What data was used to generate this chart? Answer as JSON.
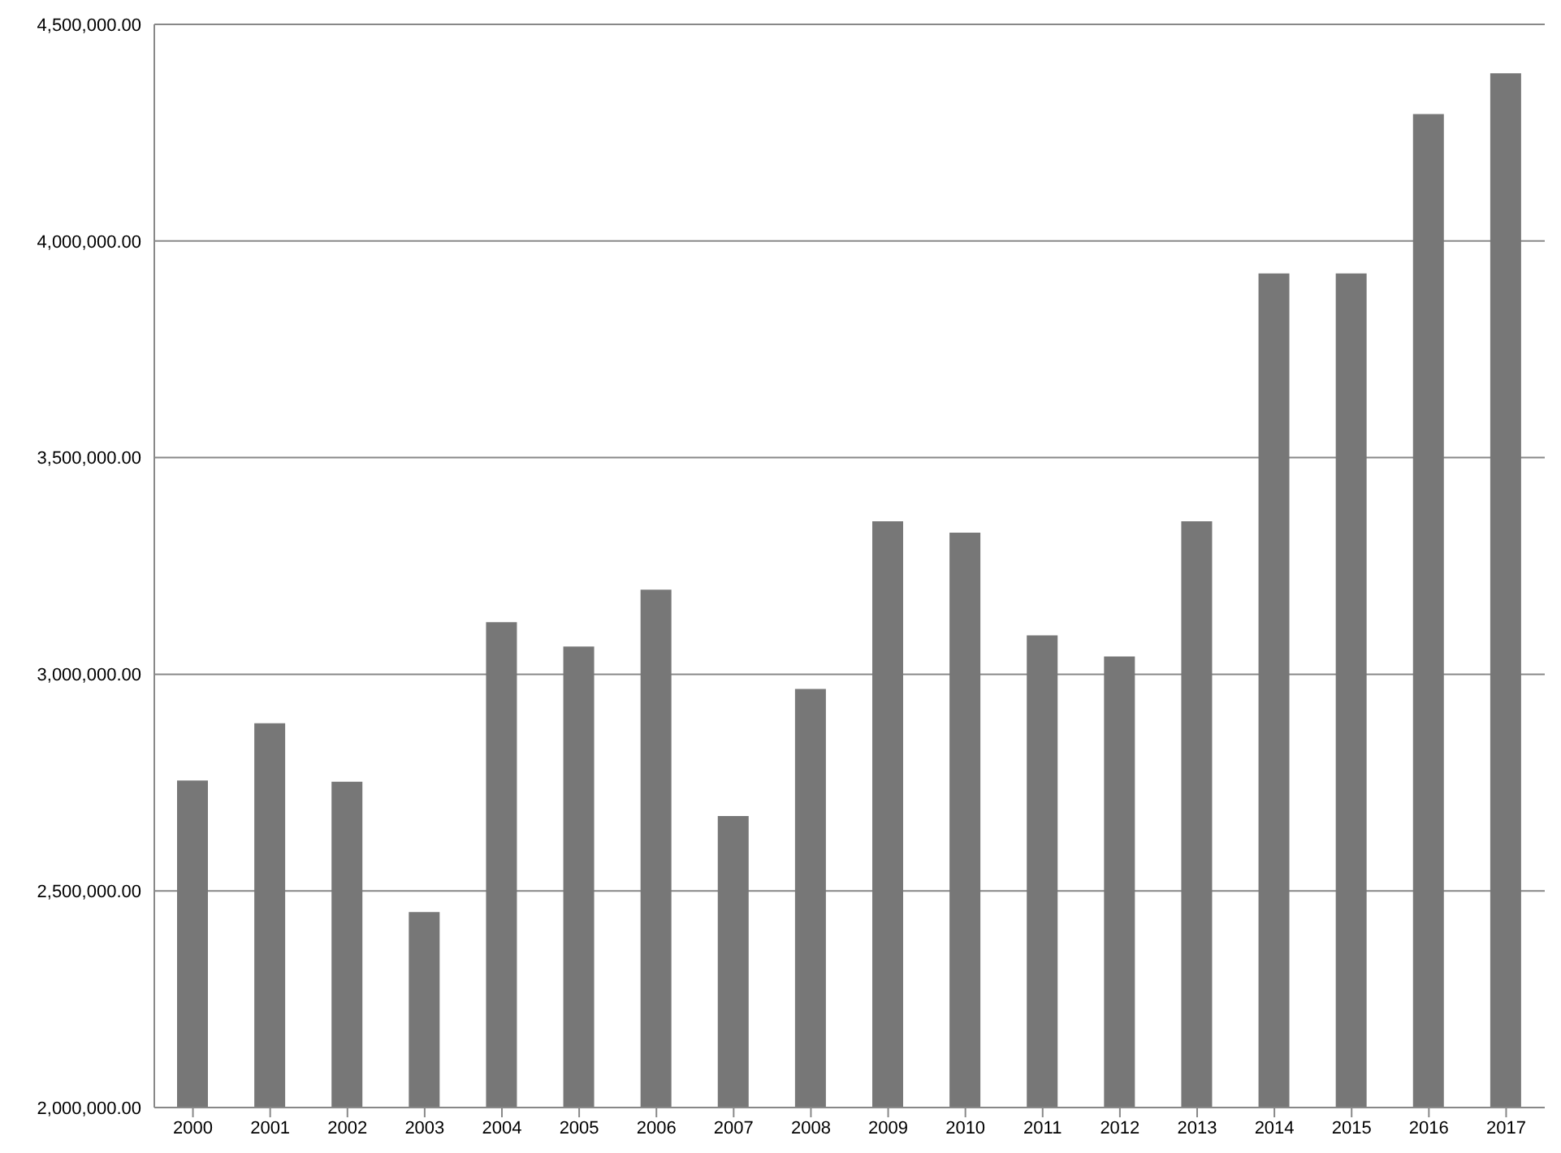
{
  "chart_data": {
    "type": "bar",
    "categories": [
      "2000",
      "2001",
      "2002",
      "2003",
      "2004",
      "2005",
      "2006",
      "2007",
      "2008",
      "2009",
      "2010",
      "2011",
      "2012",
      "2013",
      "2014",
      "2015",
      "2016",
      "2017"
    ],
    "values": [
      2755000,
      2887000,
      2752000,
      2451000,
      3120000,
      3064000,
      3195000,
      2673000,
      2966000,
      3353000,
      3327000,
      3090000,
      3041000,
      3353000,
      3925000,
      3925000,
      4293000,
      4387000
    ],
    "color": "#777777",
    "ylim": [
      2000000,
      4500000
    ],
    "yticks": [
      {
        "value": 2000000,
        "label": "2,000,000.00"
      },
      {
        "value": 2500000,
        "label": "2,500,000.00"
      },
      {
        "value": 3000000,
        "label": "3,000,000.00"
      },
      {
        "value": 3500000,
        "label": "3,500,000.00"
      },
      {
        "value": 4000000,
        "label": "4,000,000.00"
      },
      {
        "value": 4500000,
        "label": "4,500,000.00"
      }
    ],
    "grid": "y"
  }
}
